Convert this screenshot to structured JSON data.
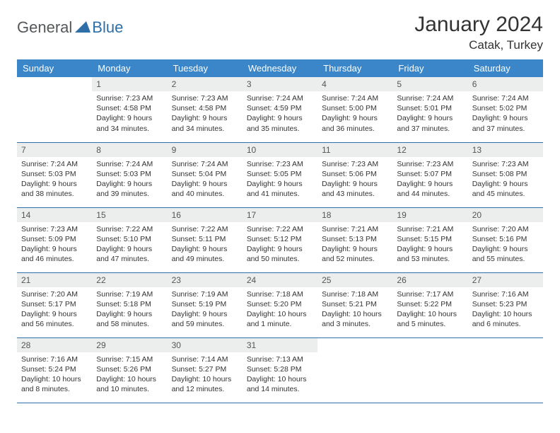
{
  "brand": {
    "general": "General",
    "blue": "Blue"
  },
  "title": "January 2024",
  "location": "Catak, Turkey",
  "colors": {
    "header_bg": "#3a86c8",
    "header_text": "#ffffff",
    "daynum_bg": "#eceded",
    "border": "#2f6fa7",
    "logo_gray": "#55585a",
    "logo_blue": "#2f6fa7"
  },
  "weekdays": [
    "Sunday",
    "Monday",
    "Tuesday",
    "Wednesday",
    "Thursday",
    "Friday",
    "Saturday"
  ],
  "weeks": [
    [
      {
        "n": "",
        "sr": "",
        "ss": "",
        "dl": ""
      },
      {
        "n": "1",
        "sr": "Sunrise: 7:23 AM",
        "ss": "Sunset: 4:58 PM",
        "dl": "Daylight: 9 hours and 34 minutes."
      },
      {
        "n": "2",
        "sr": "Sunrise: 7:23 AM",
        "ss": "Sunset: 4:58 PM",
        "dl": "Daylight: 9 hours and 34 minutes."
      },
      {
        "n": "3",
        "sr": "Sunrise: 7:24 AM",
        "ss": "Sunset: 4:59 PM",
        "dl": "Daylight: 9 hours and 35 minutes."
      },
      {
        "n": "4",
        "sr": "Sunrise: 7:24 AM",
        "ss": "Sunset: 5:00 PM",
        "dl": "Daylight: 9 hours and 36 minutes."
      },
      {
        "n": "5",
        "sr": "Sunrise: 7:24 AM",
        "ss": "Sunset: 5:01 PM",
        "dl": "Daylight: 9 hours and 37 minutes."
      },
      {
        "n": "6",
        "sr": "Sunrise: 7:24 AM",
        "ss": "Sunset: 5:02 PM",
        "dl": "Daylight: 9 hours and 37 minutes."
      }
    ],
    [
      {
        "n": "7",
        "sr": "Sunrise: 7:24 AM",
        "ss": "Sunset: 5:03 PM",
        "dl": "Daylight: 9 hours and 38 minutes."
      },
      {
        "n": "8",
        "sr": "Sunrise: 7:24 AM",
        "ss": "Sunset: 5:03 PM",
        "dl": "Daylight: 9 hours and 39 minutes."
      },
      {
        "n": "9",
        "sr": "Sunrise: 7:24 AM",
        "ss": "Sunset: 5:04 PM",
        "dl": "Daylight: 9 hours and 40 minutes."
      },
      {
        "n": "10",
        "sr": "Sunrise: 7:23 AM",
        "ss": "Sunset: 5:05 PM",
        "dl": "Daylight: 9 hours and 41 minutes."
      },
      {
        "n": "11",
        "sr": "Sunrise: 7:23 AM",
        "ss": "Sunset: 5:06 PM",
        "dl": "Daylight: 9 hours and 43 minutes."
      },
      {
        "n": "12",
        "sr": "Sunrise: 7:23 AM",
        "ss": "Sunset: 5:07 PM",
        "dl": "Daylight: 9 hours and 44 minutes."
      },
      {
        "n": "13",
        "sr": "Sunrise: 7:23 AM",
        "ss": "Sunset: 5:08 PM",
        "dl": "Daylight: 9 hours and 45 minutes."
      }
    ],
    [
      {
        "n": "14",
        "sr": "Sunrise: 7:23 AM",
        "ss": "Sunset: 5:09 PM",
        "dl": "Daylight: 9 hours and 46 minutes."
      },
      {
        "n": "15",
        "sr": "Sunrise: 7:22 AM",
        "ss": "Sunset: 5:10 PM",
        "dl": "Daylight: 9 hours and 47 minutes."
      },
      {
        "n": "16",
        "sr": "Sunrise: 7:22 AM",
        "ss": "Sunset: 5:11 PM",
        "dl": "Daylight: 9 hours and 49 minutes."
      },
      {
        "n": "17",
        "sr": "Sunrise: 7:22 AM",
        "ss": "Sunset: 5:12 PM",
        "dl": "Daylight: 9 hours and 50 minutes."
      },
      {
        "n": "18",
        "sr": "Sunrise: 7:21 AM",
        "ss": "Sunset: 5:13 PM",
        "dl": "Daylight: 9 hours and 52 minutes."
      },
      {
        "n": "19",
        "sr": "Sunrise: 7:21 AM",
        "ss": "Sunset: 5:15 PM",
        "dl": "Daylight: 9 hours and 53 minutes."
      },
      {
        "n": "20",
        "sr": "Sunrise: 7:20 AM",
        "ss": "Sunset: 5:16 PM",
        "dl": "Daylight: 9 hours and 55 minutes."
      }
    ],
    [
      {
        "n": "21",
        "sr": "Sunrise: 7:20 AM",
        "ss": "Sunset: 5:17 PM",
        "dl": "Daylight: 9 hours and 56 minutes."
      },
      {
        "n": "22",
        "sr": "Sunrise: 7:19 AM",
        "ss": "Sunset: 5:18 PM",
        "dl": "Daylight: 9 hours and 58 minutes."
      },
      {
        "n": "23",
        "sr": "Sunrise: 7:19 AM",
        "ss": "Sunset: 5:19 PM",
        "dl": "Daylight: 9 hours and 59 minutes."
      },
      {
        "n": "24",
        "sr": "Sunrise: 7:18 AM",
        "ss": "Sunset: 5:20 PM",
        "dl": "Daylight: 10 hours and 1 minute."
      },
      {
        "n": "25",
        "sr": "Sunrise: 7:18 AM",
        "ss": "Sunset: 5:21 PM",
        "dl": "Daylight: 10 hours and 3 minutes."
      },
      {
        "n": "26",
        "sr": "Sunrise: 7:17 AM",
        "ss": "Sunset: 5:22 PM",
        "dl": "Daylight: 10 hours and 5 minutes."
      },
      {
        "n": "27",
        "sr": "Sunrise: 7:16 AM",
        "ss": "Sunset: 5:23 PM",
        "dl": "Daylight: 10 hours and 6 minutes."
      }
    ],
    [
      {
        "n": "28",
        "sr": "Sunrise: 7:16 AM",
        "ss": "Sunset: 5:24 PM",
        "dl": "Daylight: 10 hours and 8 minutes."
      },
      {
        "n": "29",
        "sr": "Sunrise: 7:15 AM",
        "ss": "Sunset: 5:26 PM",
        "dl": "Daylight: 10 hours and 10 minutes."
      },
      {
        "n": "30",
        "sr": "Sunrise: 7:14 AM",
        "ss": "Sunset: 5:27 PM",
        "dl": "Daylight: 10 hours and 12 minutes."
      },
      {
        "n": "31",
        "sr": "Sunrise: 7:13 AM",
        "ss": "Sunset: 5:28 PM",
        "dl": "Daylight: 10 hours and 14 minutes."
      },
      {
        "n": "",
        "sr": "",
        "ss": "",
        "dl": ""
      },
      {
        "n": "",
        "sr": "",
        "ss": "",
        "dl": ""
      },
      {
        "n": "",
        "sr": "",
        "ss": "",
        "dl": ""
      }
    ]
  ]
}
